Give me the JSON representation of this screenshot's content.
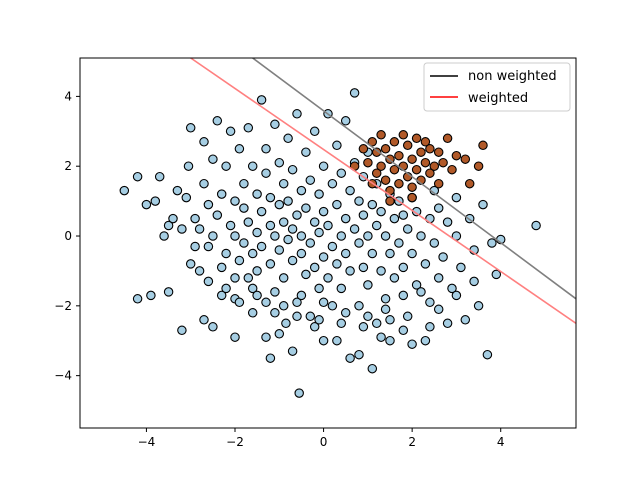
{
  "chart_data": {
    "type": "scatter",
    "title": "",
    "xlabel": "",
    "ylabel": "",
    "xlim": [
      -5.5,
      5.7
    ],
    "ylim": [
      -5.5,
      5.1
    ],
    "xticks": [
      -4,
      -2,
      0,
      2,
      4
    ],
    "yticks": [
      -4,
      -2,
      0,
      2,
      4
    ],
    "xtick_labels": [
      "−4",
      "−2",
      "0",
      "2",
      "4"
    ],
    "ytick_labels": [
      "−4",
      "−2",
      "0",
      "2",
      "4"
    ],
    "grid": false,
    "legend_position": "top-right",
    "colors": {
      "majority_fill": "#a6cee3",
      "minority_fill": "#b15928",
      "marker_edge": "#000000",
      "non_weighted_line": "#808080",
      "weighted_line": "#ff8080"
    },
    "legend": [
      {
        "label": "non weighted",
        "color": "#000000"
      },
      {
        "label": "weighted",
        "color": "#ff0000"
      }
    ],
    "lines": [
      {
        "name": "non weighted",
        "x": [
          -1.6,
          5.7
        ],
        "y": [
          5.1,
          -1.8
        ]
      },
      {
        "name": "weighted",
        "x": [
          -3.0,
          5.7
        ],
        "y": [
          5.1,
          -2.5
        ]
      }
    ],
    "series": [
      {
        "class": "majority",
        "points": [
          [
            -4.5,
            1.3
          ],
          [
            -4.2,
            1.7
          ],
          [
            -4.0,
            0.9
          ],
          [
            -3.8,
            1.0
          ],
          [
            -3.7,
            1.7
          ],
          [
            -3.6,
            0.0
          ],
          [
            -3.5,
            0.3
          ],
          [
            -3.4,
            0.5
          ],
          [
            -3.3,
            1.3
          ],
          [
            -3.2,
            0.2
          ],
          [
            -3.1,
            1.1
          ],
          [
            -3.05,
            2.0
          ],
          [
            -3.0,
            3.1
          ],
          [
            -3.0,
            -0.8
          ],
          [
            -2.9,
            -0.3
          ],
          [
            -2.9,
            0.5
          ],
          [
            -2.8,
            0.2
          ],
          [
            -2.8,
            -1.0
          ],
          [
            -2.7,
            1.5
          ],
          [
            -2.7,
            2.7
          ],
          [
            -2.6,
            0.9
          ],
          [
            -2.6,
            -0.3
          ],
          [
            -2.5,
            0.0
          ],
          [
            -2.5,
            2.2
          ],
          [
            -2.4,
            3.3
          ],
          [
            -2.4,
            0.6
          ],
          [
            -2.3,
            -0.9
          ],
          [
            -2.3,
            1.2
          ],
          [
            -2.2,
            2.0
          ],
          [
            -2.2,
            -0.5
          ],
          [
            -2.1,
            0.3
          ],
          [
            -2.1,
            3.0
          ],
          [
            -2.0,
            1.0
          ],
          [
            -2.0,
            -1.2
          ],
          [
            -2.0,
            0.0
          ],
          [
            -1.9,
            2.5
          ],
          [
            -1.9,
            -0.7
          ],
          [
            -1.8,
            0.8
          ],
          [
            -1.8,
            -0.2
          ],
          [
            -1.8,
            1.5
          ],
          [
            -1.7,
            3.1
          ],
          [
            -1.7,
            0.4
          ],
          [
            -1.6,
            -1.5
          ],
          [
            -1.6,
            2.0
          ],
          [
            -1.6,
            -0.5
          ],
          [
            -1.5,
            1.2
          ],
          [
            -1.5,
            0.1
          ],
          [
            -1.5,
            -1.0
          ],
          [
            -1.4,
            3.9
          ],
          [
            -1.4,
            0.7
          ],
          [
            -1.4,
            -0.3
          ],
          [
            -1.3,
            2.5
          ],
          [
            -1.3,
            -2.9
          ],
          [
            -1.3,
            1.8
          ],
          [
            -1.2,
            -0.8
          ],
          [
            -1.2,
            0.3
          ],
          [
            -1.2,
            1.1
          ],
          [
            -1.1,
            3.2
          ],
          [
            -1.1,
            -1.6
          ],
          [
            -1.1,
            0.0
          ],
          [
            -1.0,
            2.1
          ],
          [
            -1.0,
            -0.4
          ],
          [
            -1.0,
            0.9
          ],
          [
            -0.9,
            1.5
          ],
          [
            -0.9,
            -1.2
          ],
          [
            -0.9,
            0.4
          ],
          [
            -0.85,
            -2.5
          ],
          [
            -0.8,
            2.8
          ],
          [
            -0.8,
            -0.1
          ],
          [
            -0.8,
            1.0
          ],
          [
            -0.7,
            -0.7
          ],
          [
            -0.7,
            0.2
          ],
          [
            -0.7,
            1.9
          ],
          [
            -0.6,
            -1.9
          ],
          [
            -0.6,
            0.6
          ],
          [
            -0.6,
            3.5
          ],
          [
            -0.55,
            -4.5
          ],
          [
            -0.5,
            1.3
          ],
          [
            -0.5,
            -0.5
          ],
          [
            -0.5,
            0.0
          ],
          [
            -0.4,
            2.4
          ],
          [
            -0.4,
            -1.1
          ],
          [
            -0.4,
            0.8
          ],
          [
            -0.3,
            -2.3
          ],
          [
            -0.3,
            1.6
          ],
          [
            -0.3,
            -0.2
          ],
          [
            -0.2,
            0.4
          ],
          [
            -0.2,
            3.0
          ],
          [
            -0.2,
            -0.9
          ],
          [
            -0.1,
            1.2
          ],
          [
            -0.1,
            -1.5
          ],
          [
            -0.1,
            0.1
          ],
          [
            0.0,
            2.0
          ],
          [
            0.0,
            -0.6
          ],
          [
            0.0,
            0.7
          ],
          [
            0.0,
            -3.0
          ],
          [
            0.1,
            3.5
          ],
          [
            0.1,
            -1.2
          ],
          [
            0.1,
            0.3
          ],
          [
            0.2,
            1.5
          ],
          [
            0.2,
            -0.3
          ],
          [
            0.2,
            -2.0
          ],
          [
            0.3,
            0.9
          ],
          [
            0.3,
            2.6
          ],
          [
            0.3,
            -0.8
          ],
          [
            0.4,
            0.0
          ],
          [
            0.4,
            1.8
          ],
          [
            0.4,
            -1.5
          ],
          [
            0.5,
            3.3
          ],
          [
            0.5,
            0.5
          ],
          [
            0.5,
            -0.5
          ],
          [
            0.6,
            1.3
          ],
          [
            0.6,
            -1.0
          ],
          [
            0.6,
            -3.5
          ],
          [
            0.7,
            2.1
          ],
          [
            0.7,
            0.2
          ],
          [
            0.7,
            4.1
          ],
          [
            0.8,
            -0.2
          ],
          [
            0.8,
            1.0
          ],
          [
            0.8,
            -2.0
          ],
          [
            0.9,
            0.6
          ],
          [
            0.9,
            1.7
          ],
          [
            0.9,
            -0.9
          ],
          [
            1.0,
            2.4
          ],
          [
            1.0,
            0.0
          ],
          [
            1.0,
            -1.4
          ],
          [
            1.1,
            0.9
          ],
          [
            1.1,
            -0.5
          ],
          [
            1.1,
            -3.8
          ],
          [
            1.2,
            1.5
          ],
          [
            1.2,
            0.3
          ],
          [
            1.2,
            -2.5
          ],
          [
            1.3,
            -1.0
          ],
          [
            1.3,
            0.7
          ],
          [
            1.4,
            0.0
          ],
          [
            1.4,
            -1.8
          ],
          [
            1.5,
            1.2
          ],
          [
            1.5,
            -0.5
          ],
          [
            1.5,
            -3.0
          ],
          [
            1.6,
            0.5
          ],
          [
            1.6,
            -1.2
          ],
          [
            1.7,
            1.0
          ],
          [
            1.7,
            -0.2
          ],
          [
            1.8,
            -0.9
          ],
          [
            1.8,
            0.6
          ],
          [
            1.9,
            -2.3
          ],
          [
            1.9,
            0.2
          ],
          [
            2.0,
            -0.5
          ],
          [
            2.0,
            1.1
          ],
          [
            2.0,
            -3.1
          ],
          [
            2.1,
            0.7
          ],
          [
            2.1,
            -1.4
          ],
          [
            2.2,
            0.0
          ],
          [
            2.3,
            -0.8
          ],
          [
            2.3,
            -3.0
          ],
          [
            2.4,
            0.5
          ],
          [
            2.4,
            -1.9
          ],
          [
            2.5,
            -0.2
          ],
          [
            2.5,
            1.3
          ],
          [
            2.6,
            -1.2
          ],
          [
            2.6,
            0.8
          ],
          [
            2.7,
            -0.6
          ],
          [
            2.8,
            0.4
          ],
          [
            2.8,
            -2.5
          ],
          [
            2.9,
            -1.5
          ],
          [
            3.0,
            0.0
          ],
          [
            3.0,
            1.1
          ],
          [
            3.1,
            -0.9
          ],
          [
            3.2,
            -2.4
          ],
          [
            3.3,
            0.5
          ],
          [
            3.4,
            -0.4
          ],
          [
            3.5,
            -2.0
          ],
          [
            3.6,
            0.9
          ],
          [
            3.7,
            -3.4
          ],
          [
            3.8,
            -0.2
          ],
          [
            3.9,
            -1.1
          ],
          [
            4.0,
            -0.1
          ],
          [
            4.8,
            0.3
          ],
          [
            -4.2,
            -1.8
          ],
          [
            -3.9,
            -1.7
          ],
          [
            -3.5,
            -1.6
          ],
          [
            -3.2,
            -2.7
          ],
          [
            -2.7,
            -2.4
          ],
          [
            -2.5,
            -2.6
          ],
          [
            -2.0,
            -2.9
          ],
          [
            -1.6,
            -2.2
          ],
          [
            -1.2,
            -3.5
          ],
          [
            -1.0,
            -2.8
          ],
          [
            -0.7,
            -3.3
          ],
          [
            -0.2,
            -2.6
          ],
          [
            0.3,
            -3.0
          ],
          [
            0.8,
            -3.4
          ],
          [
            1.3,
            -2.9
          ],
          [
            1.8,
            -2.7
          ],
          [
            2.4,
            -2.6
          ],
          [
            -2.3,
            -1.7
          ],
          [
            -2.0,
            -1.8
          ],
          [
            -1.7,
            -1.2
          ],
          [
            -1.3,
            -1.9
          ],
          [
            -0.9,
            -2.0
          ],
          [
            -0.5,
            -1.7
          ],
          [
            0.0,
            -1.9
          ],
          [
            0.5,
            -2.2
          ],
          [
            1.0,
            -2.3
          ],
          [
            1.4,
            -2.1
          ],
          [
            1.8,
            -1.7
          ],
          [
            2.2,
            -1.6
          ],
          [
            2.6,
            -2.1
          ],
          [
            3.0,
            -1.7
          ],
          [
            3.4,
            -1.3
          ],
          [
            -2.6,
            -1.3
          ],
          [
            -2.2,
            -1.5
          ],
          [
            -1.9,
            -1.9
          ],
          [
            -1.5,
            -1.7
          ],
          [
            -1.1,
            -2.2
          ],
          [
            -0.6,
            -2.3
          ],
          [
            -0.1,
            -2.4
          ],
          [
            0.4,
            -2.5
          ],
          [
            0.9,
            -2.6
          ],
          [
            1.5,
            -2.4
          ]
        ]
      },
      {
        "class": "minority",
        "points": [
          [
            0.7,
            2.0
          ],
          [
            0.9,
            2.5
          ],
          [
            1.0,
            2.1
          ],
          [
            1.1,
            1.5
          ],
          [
            1.1,
            2.7
          ],
          [
            1.2,
            1.8
          ],
          [
            1.2,
            2.4
          ],
          [
            1.3,
            2.0
          ],
          [
            1.3,
            2.9
          ],
          [
            1.4,
            1.6
          ],
          [
            1.4,
            2.5
          ],
          [
            1.5,
            2.2
          ],
          [
            1.5,
            1.3
          ],
          [
            1.6,
            2.7
          ],
          [
            1.6,
            1.9
          ],
          [
            1.7,
            2.3
          ],
          [
            1.7,
            1.5
          ],
          [
            1.8,
            2.9
          ],
          [
            1.8,
            2.0
          ],
          [
            1.9,
            1.7
          ],
          [
            1.9,
            2.6
          ],
          [
            2.0,
            2.2
          ],
          [
            2.0,
            1.4
          ],
          [
            2.1,
            2.8
          ],
          [
            2.1,
            1.9
          ],
          [
            2.2,
            2.4
          ],
          [
            2.2,
            1.6
          ],
          [
            2.3,
            2.1
          ],
          [
            2.3,
            2.7
          ],
          [
            2.4,
            1.8
          ],
          [
            2.4,
            2.5
          ],
          [
            2.5,
            2.0
          ],
          [
            2.6,
            2.4
          ],
          [
            2.6,
            1.5
          ],
          [
            2.7,
            2.1
          ],
          [
            2.8,
            2.8
          ],
          [
            2.9,
            1.9
          ],
          [
            3.0,
            2.3
          ],
          [
            3.2,
            2.2
          ],
          [
            3.6,
            2.6
          ],
          [
            3.5,
            2.0
          ],
          [
            3.3,
            1.5
          ],
          [
            2.0,
            1.1
          ],
          [
            1.5,
            1.0
          ]
        ]
      }
    ]
  }
}
